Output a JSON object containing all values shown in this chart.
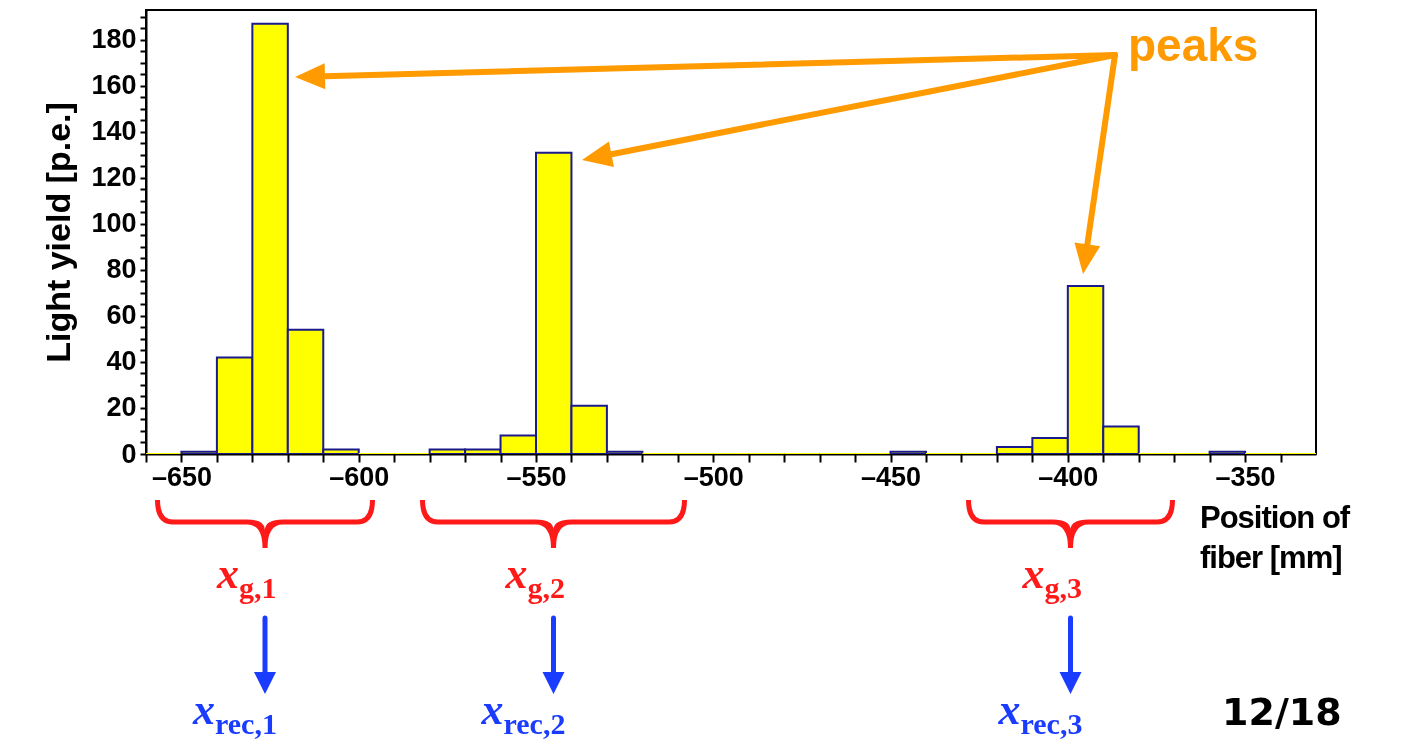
{
  "chart_data": {
    "type": "histogram",
    "ylabel": "Light yield [p.e.]",
    "xlabel": "Position of fiber [mm]",
    "bins": [
      -660,
      -650,
      -640,
      -630,
      -620,
      -610,
      -600,
      -590,
      -580,
      -570,
      -560,
      -550,
      -540,
      -530,
      -520,
      -510,
      -500,
      -490,
      -480,
      -470,
      -460,
      -450,
      -440,
      -430,
      -420,
      -410,
      -400,
      -390,
      -380,
      -370,
      -360,
      -350,
      -340,
      -330
    ],
    "values": [
      0,
      1,
      42,
      187,
      54,
      2,
      0,
      0,
      2,
      2,
      8,
      131,
      21,
      1,
      0,
      0,
      0,
      0,
      0,
      0,
      0,
      1,
      0,
      0,
      3,
      7,
      73,
      12,
      0,
      0,
      1,
      0,
      0
    ],
    "color": "#ffff00",
    "xlim": [
      -660,
      -330
    ],
    "ylim": [
      0,
      193
    ],
    "xticks": [
      {
        "value": -660,
        "label": null
      },
      {
        "value": -650,
        "label": "–650"
      },
      {
        "value": -640,
        "label": null
      },
      {
        "value": -630,
        "label": null
      },
      {
        "value": -620,
        "label": null
      },
      {
        "value": -610,
        "label": null
      },
      {
        "value": -600,
        "label": "–600"
      },
      {
        "value": -590,
        "label": null
      },
      {
        "value": -580,
        "label": null
      },
      {
        "value": -570,
        "label": null
      },
      {
        "value": -560,
        "label": null
      },
      {
        "value": -550,
        "label": "–550"
      },
      {
        "value": -540,
        "label": null
      },
      {
        "value": -530,
        "label": null
      },
      {
        "value": -520,
        "label": null
      },
      {
        "value": -510,
        "label": null
      },
      {
        "value": -500,
        "label": "–500"
      },
      {
        "value": -490,
        "label": null
      },
      {
        "value": -480,
        "label": null
      },
      {
        "value": -470,
        "label": null
      },
      {
        "value": -460,
        "label": null
      },
      {
        "value": -450,
        "label": "–450"
      },
      {
        "value": -440,
        "label": null
      },
      {
        "value": -430,
        "label": null
      },
      {
        "value": -420,
        "label": null
      },
      {
        "value": -410,
        "label": null
      },
      {
        "value": -400,
        "label": "–400"
      },
      {
        "value": -390,
        "label": null
      },
      {
        "value": -380,
        "label": null
      },
      {
        "value": -370,
        "label": null
      },
      {
        "value": -360,
        "label": null
      },
      {
        "value": -350,
        "label": "–350"
      },
      {
        "value": -340,
        "label": null
      }
    ],
    "yticks": [
      0,
      {
        "value": 5,
        "label": null
      },
      {
        "value": 10,
        "label": null
      },
      {
        "value": 15,
        "label": null
      },
      20,
      {
        "value": 25,
        "label": null
      },
      {
        "value": 30,
        "label": null
      },
      {
        "value": 35,
        "label": null
      },
      40,
      {
        "value": 45,
        "label": null
      },
      {
        "value": 50,
        "label": null
      },
      {
        "value": 55,
        "label": null
      },
      60,
      {
        "value": 65,
        "label": null
      },
      {
        "value": 70,
        "label": null
      },
      {
        "value": 75,
        "label": null
      },
      80,
      {
        "value": 85,
        "label": null
      },
      {
        "value": 90,
        "label": null
      },
      {
        "value": 95,
        "label": null
      },
      100,
      {
        "value": 105,
        "label": null
      },
      {
        "value": 110,
        "label": null
      },
      {
        "value": 115,
        "label": null
      },
      120,
      {
        "value": 125,
        "label": null
      },
      {
        "value": 130,
        "label": null
      },
      {
        "value": 135,
        "label": null
      },
      140,
      {
        "value": 145,
        "label": null
      },
      {
        "value": 150,
        "label": null
      },
      {
        "value": 155,
        "label": null
      },
      160,
      {
        "value": 165,
        "label": null
      },
      {
        "value": 170,
        "label": null
      },
      {
        "value": 175,
        "label": null
      },
      180,
      {
        "value": 185,
        "label": null
      },
      {
        "value": 190,
        "label": null
      }
    ],
    "grid": false,
    "annotations": [
      "peaks",
      "x$_{g,1}$",
      "x$_{g,2}$",
      "x$_{g,3}$",
      "x$_{rec,1}$",
      "x$_{rec,2}$",
      "x$_{rec,3}$",
      "12/18"
    ]
  }
}
